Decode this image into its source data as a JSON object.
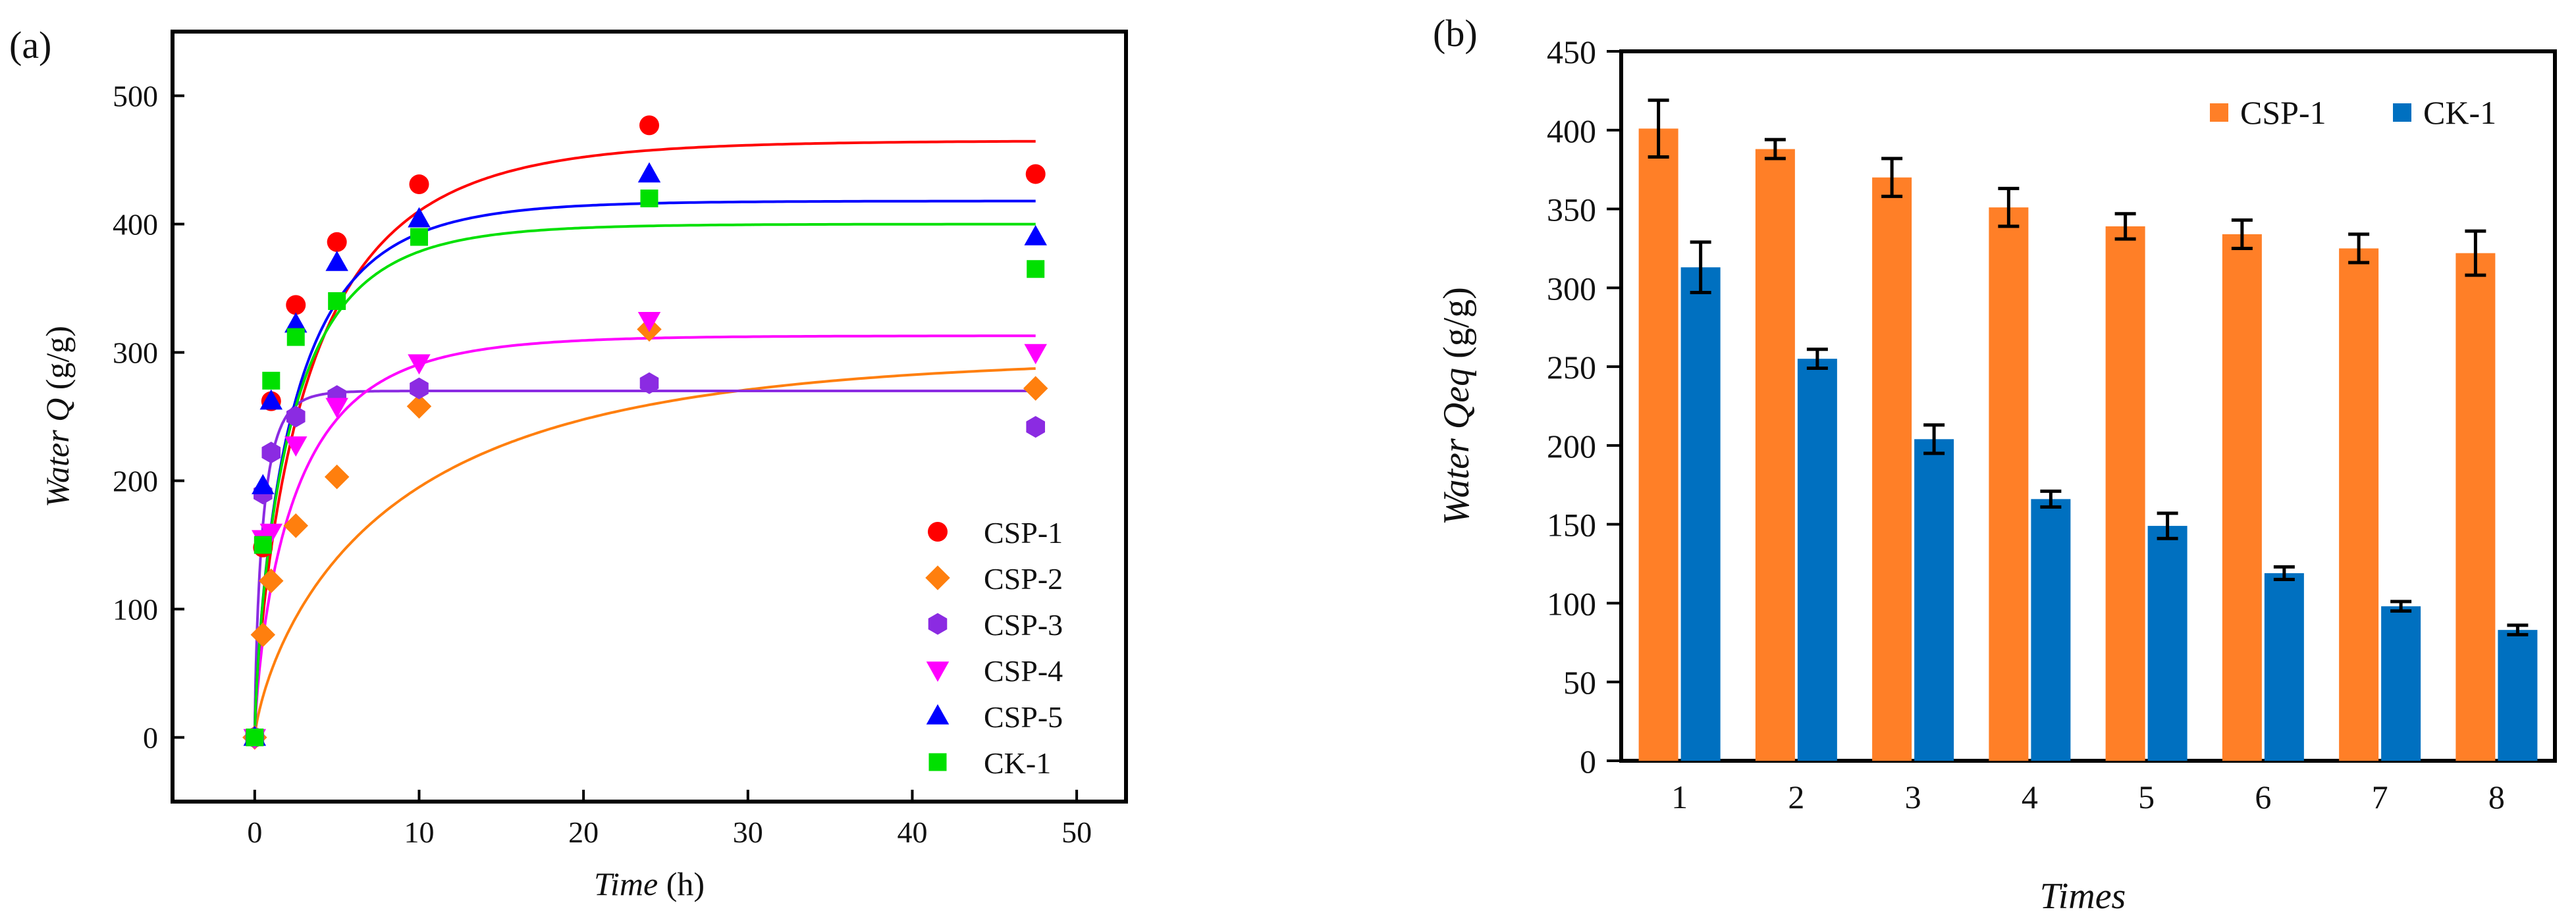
{
  "chart_data": [
    {
      "panel_label": "(a)",
      "type": "scatter",
      "title": "",
      "xlabel_italic": "Time",
      "xlabel_unit": " (h)",
      "ylabel_italic": "Water Q",
      "ylabel_unit": " (g/g)",
      "xlim": [
        -5,
        53
      ],
      "ylim": [
        -50,
        550
      ],
      "xticks": [
        0,
        10,
        20,
        30,
        40,
        50
      ],
      "yticks": [
        0,
        100,
        200,
        300,
        400,
        500
      ],
      "grid": false,
      "legend": "bottom-right",
      "series": [
        {
          "name": "CSP-1",
          "color": "#ff0000",
          "marker": "circle",
          "x": [
            0,
            0.5,
            1,
            2.5,
            5,
            10,
            24,
            47.5
          ],
          "y": [
            0,
            148,
            262,
            337,
            386,
            431,
            477,
            439
          ],
          "fit": {
            "qmax": 465,
            "k": 0.38
          }
        },
        {
          "name": "CSP-2",
          "color": "#ff7f0e",
          "marker": "diamond",
          "x": [
            0,
            0.5,
            1,
            2.5,
            5,
            10,
            24,
            47.5
          ],
          "y": [
            0,
            80,
            122,
            165,
            203,
            258,
            318,
            272
          ],
          "fit": {
            "qmax": 297,
            "k": 0.19
          }
        },
        {
          "name": "CSP-3",
          "color": "#8b2be2",
          "marker": "hexagon",
          "x": [
            0,
            0.5,
            1,
            2.5,
            5,
            10,
            24,
            47.5
          ],
          "y": [
            0,
            190,
            222,
            250,
            266,
            272,
            276,
            242
          ],
          "fit": {
            "qmax": 270,
            "k": 1.6
          }
        },
        {
          "name": "CSP-4",
          "color": "#ff00ff",
          "marker": "triangle-down",
          "x": [
            0,
            0.5,
            1,
            2.5,
            5,
            10,
            24,
            47.5
          ],
          "y": [
            0,
            155,
            160,
            228,
            258,
            292,
            325,
            300
          ],
          "fit": {
            "qmax": 313,
            "k": 0.47
          }
        },
        {
          "name": "CSP-5",
          "color": "#0000ff",
          "marker": "triangle-up",
          "x": [
            0,
            0.5,
            1,
            2.5,
            5,
            10,
            24,
            47.5
          ],
          "y": [
            0,
            196,
            262,
            322,
            370,
            404,
            439,
            390
          ],
          "fit": {
            "qmax": 418,
            "k": 0.5
          }
        },
        {
          "name": "CK-1",
          "color": "#00e000",
          "marker": "square",
          "x": [
            0,
            0.5,
            1,
            2.5,
            5,
            10,
            24,
            47.5
          ],
          "y": [
            0,
            150,
            278,
            312,
            340,
            390,
            420,
            365
          ],
          "fit": {
            "qmax": 400,
            "k": 0.52
          }
        }
      ]
    },
    {
      "panel_label": "(b)",
      "type": "bar",
      "title": "",
      "xlabel_italic": "Times",
      "ylabel_italic": "Water Qeq",
      "ylabel_unit": " (g/g)",
      "ylim": [
        0,
        450
      ],
      "yticks": [
        0,
        50,
        100,
        150,
        200,
        250,
        300,
        350,
        400,
        450
      ],
      "categories": [
        "1",
        "2",
        "3",
        "4",
        "5",
        "6",
        "7",
        "8"
      ],
      "grid": false,
      "legend": "top-right",
      "series": [
        {
          "name": "CSP-1",
          "color": "#ff7f27",
          "values": [
            401,
            388,
            370,
            351,
            339,
            334,
            325,
            322
          ],
          "errors": [
            18,
            6,
            12,
            12,
            8,
            9,
            9,
            14
          ]
        },
        {
          "name": "CK-1",
          "color": "#0070c0",
          "values": [
            313,
            255,
            204,
            166,
            149,
            119,
            98,
            83
          ],
          "errors": [
            16,
            6,
            9,
            5,
            8,
            4,
            3,
            3
          ]
        }
      ]
    }
  ]
}
